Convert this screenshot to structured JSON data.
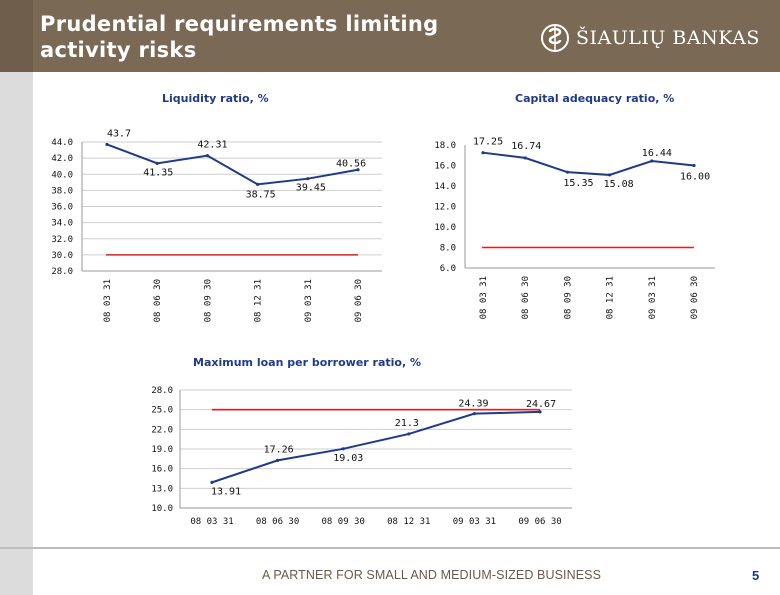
{
  "slide": {
    "title_line1": "Prudential requirements limiting",
    "title_line2": "activity risks",
    "logo_text": "ŠIAULIŲ BANKAS",
    "tagline": "A PARTNER FOR SMALL AND MEDIUM-SIZED BUSINESS",
    "page_number": "5"
  },
  "colors": {
    "series_line": "#1f3a8a",
    "limit_line": "#e02020",
    "header_bg": "#7a6a55",
    "grid": "#cfcfcf"
  },
  "icons": [
    "bank-logo-icon"
  ],
  "chart_data": [
    {
      "id": "liquidity",
      "type": "line",
      "title": "Liquidity ratio, %",
      "categories": [
        "08 03 31",
        "08 06 30",
        "08 09 30",
        "08 12 31",
        "09 03 31",
        "09 06 30"
      ],
      "ylim": [
        28,
        44
      ],
      "yticks": [
        "44.0",
        "42.0",
        "40.0",
        "38.0",
        "36.0",
        "34.0",
        "32.0",
        "30.0",
        "28.0"
      ],
      "grid": true,
      "series": [
        {
          "values": [
            43.7,
            41.35,
            42.31,
            38.75,
            39.45,
            40.56
          ],
          "labels": [
            "43.7",
            "41.35",
            "42.31",
            "38.75",
            "39.45",
            "40.56"
          ]
        }
      ],
      "limit": 30
    },
    {
      "id": "capital",
      "type": "line",
      "title": "Capital adequacy ratio, %",
      "categories": [
        "08 03 31",
        "08 06 30",
        "08 09 30",
        "08 12 31",
        "09 03 31",
        "09 06 30"
      ],
      "ylim": [
        6,
        18
      ],
      "yticks": [
        "18.0",
        "16.0",
        "14.0",
        "12.0",
        "10.0",
        "8.0",
        "6.0"
      ],
      "grid": false,
      "series": [
        {
          "values": [
            17.25,
            16.74,
            15.35,
            15.08,
            16.44,
            16.0
          ],
          "labels": [
            "17.25",
            "16.74",
            "15.35",
            "15.08",
            "16.44",
            "16.00"
          ]
        }
      ],
      "limit": 8
    },
    {
      "id": "max-loan",
      "type": "line",
      "title": "Maximum loan per borrower ratio, %",
      "categories": [
        "08 03 31",
        "08 06 30",
        "08 09 30",
        "08 12 31",
        "09 03 31",
        "09 06 30"
      ],
      "ylim": [
        10,
        28
      ],
      "yticks": [
        "28.0",
        "25.0",
        "22.0",
        "19.0",
        "16.0",
        "13.0",
        "10.0"
      ],
      "grid": true,
      "series": [
        {
          "values": [
            13.91,
            17.26,
            19.03,
            21.3,
            24.39,
            24.67
          ],
          "labels": [
            "13.91",
            "17.26",
            "19.03",
            "21.3",
            "24.39",
            "24.67"
          ]
        }
      ],
      "limit": 25
    }
  ]
}
